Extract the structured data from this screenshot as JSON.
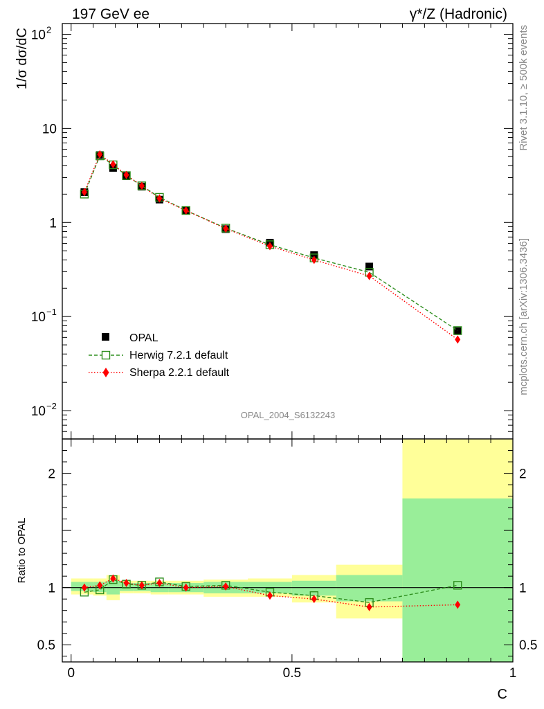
{
  "header": {
    "left": "197 GeV ee",
    "right": "γ*/Z (Hadronic)"
  },
  "side_text": {
    "rivet": "Rivet 3.1.10, ≥ 500k events",
    "mcplots": "mcplots.cern.ch [arXiv:1306.3436]"
  },
  "watermark": "OPAL_2004_S6132243",
  "chart_data": [
    {
      "type": "scatter",
      "panel": "main",
      "ylabel": "1/σ dσ/dC",
      "yscale": "log",
      "ylim": [
        0.005,
        130
      ],
      "xlim": [
        -0.02,
        1.0
      ],
      "y_ticks": [
        {
          "value": 0.01,
          "base": "10",
          "exp": "−2"
        },
        {
          "value": 0.1,
          "base": "10",
          "exp": "−1"
        },
        {
          "value": 1,
          "base": "1",
          "exp": ""
        },
        {
          "value": 10,
          "base": "10",
          "exp": ""
        },
        {
          "value": 100,
          "base": "10",
          "exp": "2"
        }
      ],
      "legend_position": "lower-left",
      "series": [
        {
          "name": "OPAL",
          "color": "#000000",
          "marker": "square",
          "x": [
            0.03,
            0.065,
            0.095,
            0.125,
            0.16,
            0.2,
            0.26,
            0.35,
            0.45,
            0.55,
            0.675,
            0.875
          ],
          "y": [
            2.1,
            5.2,
            3.8,
            3.1,
            2.4,
            1.75,
            1.33,
            0.85,
            0.61,
            0.45,
            0.34,
            0.07
          ]
        },
        {
          "name": "Herwig 7.2.1 default",
          "color": "#2f8f1f",
          "marker": "open-square",
          "line": "dashed",
          "x": [
            0.03,
            0.065,
            0.095,
            0.125,
            0.16,
            0.2,
            0.26,
            0.35,
            0.45,
            0.55,
            0.675,
            0.875
          ],
          "y": [
            2.0,
            5.1,
            4.1,
            3.15,
            2.45,
            1.85,
            1.34,
            0.87,
            0.58,
            0.42,
            0.295,
            0.071
          ]
        },
        {
          "name": "Sherpa 2.2.1 default",
          "color": "#ff0000",
          "marker": "diamond",
          "line": "dotted",
          "x": [
            0.03,
            0.065,
            0.095,
            0.125,
            0.16,
            0.2,
            0.26,
            0.35,
            0.45,
            0.55,
            0.675,
            0.875
          ],
          "y": [
            2.1,
            5.3,
            4.15,
            3.2,
            2.45,
            1.8,
            1.34,
            0.86,
            0.56,
            0.4,
            0.27,
            0.057
          ]
        }
      ]
    },
    {
      "type": "scatter",
      "panel": "ratio",
      "ylabel": "Ratio to OPAL",
      "xlabel": "C",
      "ylim": [
        0.35,
        2.3
      ],
      "xlim": [
        -0.02,
        1.0
      ],
      "x_ticks": [
        {
          "value": 0,
          "label": "0"
        },
        {
          "value": 0.5,
          "label": "0.5"
        },
        {
          "value": 1,
          "label": "1"
        }
      ],
      "y_ticks": [
        {
          "value": 0.5,
          "label": "0.5"
        },
        {
          "value": 1,
          "label": "1"
        },
        {
          "value": 2,
          "label": "2"
        }
      ],
      "bands": [
        {
          "x": [
            0.0,
            0.05
          ],
          "green": [
            0.97,
            1.05
          ],
          "yellow": [
            0.94,
            1.08
          ]
        },
        {
          "x": [
            0.05,
            0.08
          ],
          "green": [
            0.96,
            1.05
          ],
          "yellow": [
            0.93,
            1.08
          ]
        },
        {
          "x": [
            0.08,
            0.11
          ],
          "green": [
            0.94,
            1.06
          ],
          "yellow": [
            0.89,
            1.11
          ]
        },
        {
          "x": [
            0.11,
            0.14
          ],
          "green": [
            0.97,
            1.04
          ],
          "yellow": [
            0.95,
            1.06
          ]
        },
        {
          "x": [
            0.14,
            0.18
          ],
          "green": [
            0.97,
            1.04
          ],
          "yellow": [
            0.95,
            1.06
          ]
        },
        {
          "x": [
            0.18,
            0.22
          ],
          "green": [
            0.96,
            1.04
          ],
          "yellow": [
            0.94,
            1.06
          ]
        },
        {
          "x": [
            0.22,
            0.3
          ],
          "green": [
            0.96,
            1.04
          ],
          "yellow": [
            0.94,
            1.06
          ]
        },
        {
          "x": [
            0.3,
            0.4
          ],
          "green": [
            0.95,
            1.05
          ],
          "yellow": [
            0.92,
            1.07
          ]
        },
        {
          "x": [
            0.4,
            0.5
          ],
          "green": [
            0.95,
            1.05
          ],
          "yellow": [
            0.92,
            1.08
          ]
        },
        {
          "x": [
            0.5,
            0.6
          ],
          "green": [
            0.93,
            1.06
          ],
          "yellow": [
            0.87,
            1.11
          ]
        },
        {
          "x": [
            0.6,
            0.75
          ],
          "green": [
            0.88,
            1.11
          ],
          "yellow": [
            0.73,
            1.2
          ]
        },
        {
          "x": [
            0.75,
            1.0
          ],
          "green": [
            0.35,
            1.78
          ],
          "yellow": [
            0.35,
            2.3
          ]
        }
      ],
      "series": [
        {
          "name": "Herwig 7.2.1 default",
          "color": "#2f8f1f",
          "marker": "open-square",
          "line": "dashed",
          "x": [
            0.03,
            0.065,
            0.095,
            0.125,
            0.16,
            0.2,
            0.26,
            0.35,
            0.45,
            0.55,
            0.675,
            0.875
          ],
          "y": [
            0.96,
            0.98,
            1.07,
            1.03,
            1.02,
            1.05,
            1.01,
            1.02,
            0.96,
            0.93,
            0.87,
            1.02
          ]
        },
        {
          "name": "Sherpa 2.2.1 default",
          "color": "#ff0000",
          "marker": "diamond",
          "line": "dotted",
          "x": [
            0.03,
            0.065,
            0.095,
            0.125,
            0.16,
            0.2,
            0.26,
            0.35,
            0.45,
            0.55,
            0.675,
            0.875
          ],
          "y": [
            1.0,
            1.02,
            1.08,
            1.04,
            1.02,
            1.04,
            1.0,
            1.01,
            0.93,
            0.9,
            0.83,
            0.85
          ]
        }
      ]
    }
  ]
}
